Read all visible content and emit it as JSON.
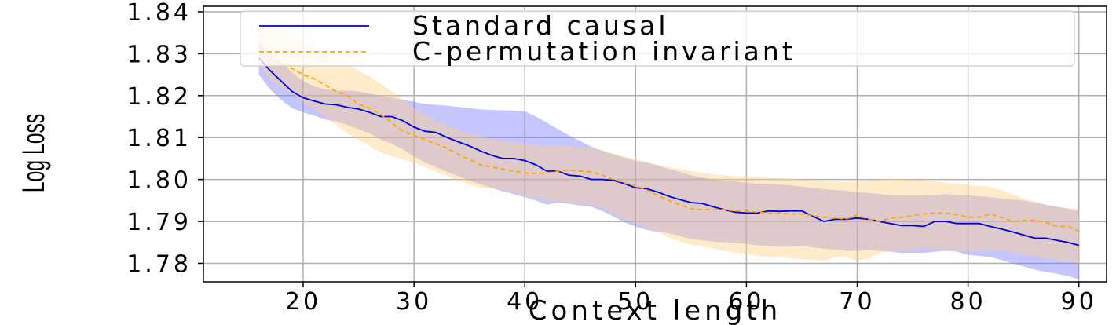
{
  "chart_data": {
    "type": "line",
    "xlabel": "Context length",
    "ylabel": "Log Loss",
    "xlim": [
      11,
      92.5
    ],
    "ylim": [
      1.7756,
      1.8413
    ],
    "xticks": [
      20,
      30,
      40,
      50,
      60,
      70,
      80,
      90
    ],
    "yticks": [
      1.78,
      1.79,
      1.8,
      1.81,
      1.82,
      1.83,
      1.84
    ],
    "ytick_labels": [
      "1.78",
      "1.79",
      "1.80",
      "1.81",
      "1.82",
      "1.83",
      "1.84"
    ],
    "grid": true,
    "legend": "top",
    "x": [
      16,
      17,
      18,
      19,
      20,
      21,
      22,
      23,
      24,
      25,
      26,
      27,
      28,
      29,
      30,
      31,
      32,
      33,
      34,
      35,
      36,
      37,
      38,
      39,
      40,
      41,
      42,
      43,
      44,
      45,
      46,
      47,
      48,
      49,
      50,
      51,
      52,
      53,
      54,
      55,
      56,
      57,
      58,
      59,
      60,
      61,
      62,
      63,
      64,
      65,
      66,
      67,
      68,
      69,
      70,
      71,
      72,
      73,
      74,
      75,
      76,
      77,
      78,
      79,
      80,
      81,
      82,
      83,
      84,
      85,
      86,
      87,
      88,
      89,
      90
    ],
    "series": [
      {
        "name": "Standard causal",
        "color": "#0000dd",
        "band_color": "#7777ff",
        "style": "solid",
        "values": [
          1.829,
          1.826,
          1.8235,
          1.821,
          1.8195,
          1.8187,
          1.818,
          1.8178,
          1.8172,
          1.8168,
          1.816,
          1.815,
          1.815,
          1.814,
          1.8125,
          1.8115,
          1.8112,
          1.81,
          1.809,
          1.808,
          1.8068,
          1.8058,
          1.805,
          1.805,
          1.8045,
          1.8035,
          1.802,
          1.802,
          1.801,
          1.8008,
          1.8,
          1.8,
          1.7998,
          1.799,
          1.798,
          1.7978,
          1.797,
          1.796,
          1.7952,
          1.7945,
          1.7943,
          1.7935,
          1.7928,
          1.7922,
          1.792,
          1.792,
          1.7925,
          1.7924,
          1.7925,
          1.7925,
          1.7912,
          1.79,
          1.7905,
          1.7905,
          1.7908,
          1.7905,
          1.79,
          1.7895,
          1.789,
          1.789,
          1.7888,
          1.79,
          1.79,
          1.7895,
          1.7895,
          1.7895,
          1.7888,
          1.7882,
          1.7875,
          1.7868,
          1.786,
          1.786,
          1.7855,
          1.785,
          1.7843
        ],
        "lower": [
          1.825,
          1.8215,
          1.819,
          1.817,
          1.816,
          1.8152,
          1.8143,
          1.8138,
          1.813,
          1.812,
          1.811,
          1.8095,
          1.8085,
          1.8072,
          1.8055,
          1.804,
          1.803,
          1.8018,
          1.8008,
          1.7998,
          1.7988,
          1.798,
          1.7972,
          1.7965,
          1.7958,
          1.795,
          1.794,
          1.7945,
          1.7942,
          1.7938,
          1.7935,
          1.7925,
          1.7912,
          1.7898,
          1.7888,
          1.788,
          1.7875,
          1.7872,
          1.7865,
          1.7858,
          1.7855,
          1.7852,
          1.785,
          1.7848,
          1.7846,
          1.7843,
          1.7842,
          1.784,
          1.784,
          1.7842,
          1.7838,
          1.7835,
          1.7833,
          1.783,
          1.783,
          1.7832,
          1.783,
          1.7828,
          1.7825,
          1.7825,
          1.7825,
          1.7828,
          1.783,
          1.7828,
          1.782,
          1.7818,
          1.7815,
          1.7808,
          1.78,
          1.7793,
          1.7785,
          1.778,
          1.7775,
          1.777,
          1.7762
        ],
        "upper": [
          1.833,
          1.8305,
          1.828,
          1.8255,
          1.8235,
          1.8222,
          1.8215,
          1.8212,
          1.8212,
          1.821,
          1.8205,
          1.82,
          1.8195,
          1.819,
          1.8185,
          1.818,
          1.8178,
          1.8176,
          1.8173,
          1.817,
          1.8167,
          1.8166,
          1.8165,
          1.8164,
          1.8163,
          1.815,
          1.8135,
          1.812,
          1.8105,
          1.8092,
          1.8078,
          1.8068,
          1.806,
          1.8052,
          1.8045,
          1.804,
          1.8033,
          1.8025,
          1.8018,
          1.801,
          1.8005,
          1.8,
          1.7997,
          1.7995,
          1.7992,
          1.799,
          1.799,
          1.7988,
          1.7986,
          1.7983,
          1.798,
          1.7977,
          1.7975,
          1.7973,
          1.797,
          1.7968,
          1.7965,
          1.7963,
          1.7962,
          1.7962,
          1.7962,
          1.7963,
          1.7965,
          1.7963,
          1.7962,
          1.796,
          1.7958,
          1.7955,
          1.7952,
          1.795,
          1.7945,
          1.794,
          1.7935,
          1.793,
          1.7925
        ]
      },
      {
        "name": "C-permutation invariant",
        "color": "#ffa500",
        "band_color": "#ffcf80",
        "style": "dashed",
        "values": [
          1.832,
          1.829,
          1.8275,
          1.8265,
          1.825,
          1.824,
          1.8225,
          1.821,
          1.82,
          1.818,
          1.817,
          1.8155,
          1.8135,
          1.8115,
          1.8105,
          1.8095,
          1.8085,
          1.8075,
          1.806,
          1.8048,
          1.8035,
          1.803,
          1.8025,
          1.802,
          1.8015,
          1.8015,
          1.8015,
          1.802,
          1.8022,
          1.802,
          1.8018,
          1.801,
          1.8,
          1.7992,
          1.7985,
          1.7975,
          1.7962,
          1.795,
          1.794,
          1.793,
          1.7928,
          1.7928,
          1.7928,
          1.7925,
          1.7925,
          1.7922,
          1.792,
          1.792,
          1.7918,
          1.7918,
          1.7913,
          1.791,
          1.7908,
          1.7906,
          1.7915,
          1.7905,
          1.79,
          1.7908,
          1.791,
          1.7914,
          1.7918,
          1.792,
          1.792,
          1.7916,
          1.791,
          1.791,
          1.7918,
          1.791,
          1.79,
          1.7902,
          1.7903,
          1.7898,
          1.7888,
          1.7888,
          1.7877
        ],
        "lower": [
          1.8275,
          1.824,
          1.822,
          1.8205,
          1.8185,
          1.817,
          1.815,
          1.813,
          1.811,
          1.8095,
          1.808,
          1.8065,
          1.8055,
          1.8048,
          1.804,
          1.803,
          1.8018,
          1.8008,
          1.7998,
          1.7988,
          1.798,
          1.7978,
          1.7975,
          1.797,
          1.796,
          1.7955,
          1.795,
          1.7948,
          1.7945,
          1.7942,
          1.794,
          1.7932,
          1.7918,
          1.7905,
          1.7895,
          1.7885,
          1.7875,
          1.7862,
          1.7852,
          1.7845,
          1.784,
          1.7835,
          1.783,
          1.7826,
          1.7822,
          1.7818,
          1.7815,
          1.7815,
          1.7812,
          1.781,
          1.7808,
          1.7805,
          1.7815,
          1.7815,
          1.7806,
          1.7812,
          1.7825,
          1.7828,
          1.783,
          1.7832,
          1.7835,
          1.7835,
          1.7834,
          1.783,
          1.7828,
          1.783,
          1.7832,
          1.783,
          1.7826,
          1.7822,
          1.7818,
          1.7812,
          1.7808,
          1.7805,
          1.78
        ],
        "upper": [
          1.8365,
          1.8355,
          1.835,
          1.834,
          1.833,
          1.8318,
          1.8305,
          1.829,
          1.8275,
          1.826,
          1.8245,
          1.8228,
          1.821,
          1.819,
          1.817,
          1.8155,
          1.814,
          1.8128,
          1.8118,
          1.811,
          1.8103,
          1.8097,
          1.8092,
          1.8088,
          1.8085,
          1.8082,
          1.808,
          1.808,
          1.808,
          1.8078,
          1.8075,
          1.807,
          1.8062,
          1.8055,
          1.8048,
          1.8042,
          1.8035,
          1.803,
          1.8025,
          1.802,
          1.8015,
          1.8012,
          1.801,
          1.8008,
          1.8008,
          1.8005,
          1.8004,
          1.8003,
          1.8002,
          1.8,
          1.7998,
          1.7996,
          1.7995,
          1.7994,
          1.7996,
          1.7998,
          1.8,
          1.8002,
          1.8001,
          1.8,
          1.7998,
          1.7996,
          1.7992,
          1.799,
          1.7988,
          1.7985,
          1.7982,
          1.7975,
          1.7965,
          1.7955,
          1.7948,
          1.794,
          1.7935,
          1.7932,
          1.793
        ]
      }
    ]
  }
}
